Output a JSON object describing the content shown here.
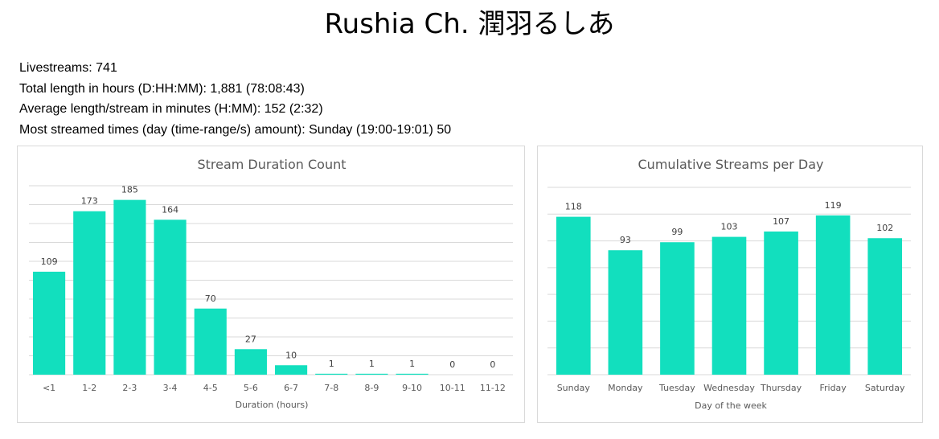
{
  "page": {
    "title": "Rushia Ch. 潤羽るしあ",
    "stats": [
      "Livestreams: 741",
      "Total length in hours (D:HH:MM): 1,881 (78:08:43)",
      "Average length/stream in minutes (H:MM): 152 (2:32)",
      "Most streamed times (day (time-range/s) amount): Sunday (19:00-19:01) 50"
    ]
  },
  "colors": {
    "bar": "#12dfbe",
    "grid": "#d9d9d9",
    "text": "#595959"
  },
  "chart_data": [
    {
      "type": "bar",
      "title": "Stream Duration Count",
      "xlabel": "Duration (hours)",
      "ylabel": "",
      "categories": [
        "<1",
        "1-2",
        "2-3",
        "3-4",
        "4-5",
        "5-6",
        "6-7",
        "7-8",
        "8-9",
        "9-10",
        "10-11",
        "11-12"
      ],
      "values": [
        109,
        173,
        185,
        164,
        70,
        27,
        10,
        1,
        1,
        1,
        0,
        0
      ],
      "ylim": [
        0,
        200
      ],
      "grid": true,
      "legend": "none"
    },
    {
      "type": "bar",
      "title": "Cumulative Streams per Day",
      "xlabel": "Day of the week",
      "ylabel": "",
      "categories": [
        "Sunday",
        "Monday",
        "Tuesday",
        "Wednesday",
        "Thursday",
        "Friday",
        "Saturday"
      ],
      "values": [
        118,
        93,
        99,
        103,
        107,
        119,
        102
      ],
      "ylim": [
        0,
        140
      ],
      "grid": true,
      "legend": "none"
    }
  ]
}
